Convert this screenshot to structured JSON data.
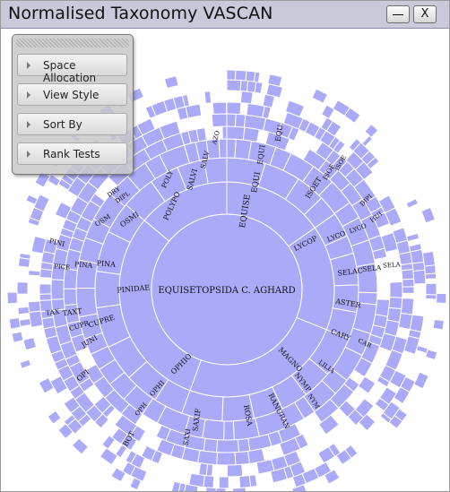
{
  "window": {
    "title": "Normalised Taxonomy VASCAN",
    "close_label": "X"
  },
  "menu": {
    "items": [
      {
        "label": "Space Allocation"
      },
      {
        "label": "View Style"
      },
      {
        "label": "Sort By"
      },
      {
        "label": "Rank Tests"
      }
    ]
  },
  "sunburst": {
    "colors": {
      "fill": "#aaaaf8",
      "stroke": "#ffffff",
      "text": "#111111"
    },
    "center_label": "EQUISETOPSIDA C. AGHARD",
    "labels": [
      {
        "text": "EQUISE",
        "name": "label-equise"
      },
      {
        "text": "EQUI",
        "name": "label-equi"
      },
      {
        "text": "EQUI",
        "name": "label-equi-2"
      },
      {
        "text": "EQU",
        "name": "label-equ"
      },
      {
        "text": "ISOET",
        "name": "label-isoet"
      },
      {
        "text": "ISOE",
        "name": "label-isoe"
      },
      {
        "text": "ISOE",
        "name": "label-isoe-2"
      },
      {
        "text": "DIPI",
        "name": "label-dipi"
      },
      {
        "text": "HUI",
        "name": "label-hui"
      },
      {
        "text": "LYCOP",
        "name": "label-lycop"
      },
      {
        "text": "LYCO",
        "name": "label-lyco"
      },
      {
        "text": "LYCO",
        "name": "label-lyco-2"
      },
      {
        "text": "SELAC",
        "name": "label-selac"
      },
      {
        "text": "SELA",
        "name": "label-sela"
      },
      {
        "text": "SELA",
        "name": "label-sela-2"
      },
      {
        "text": "ASTER",
        "name": "label-aster"
      },
      {
        "text": "CARY",
        "name": "label-cary"
      },
      {
        "text": "CAR",
        "name": "label-car"
      },
      {
        "text": "LILIA",
        "name": "label-lilia"
      },
      {
        "text": "MAGNO",
        "name": "label-magno"
      },
      {
        "text": "NYMP",
        "name": "label-nymp"
      },
      {
        "text": "NYM",
        "name": "label-nym"
      },
      {
        "text": "RANU",
        "name": "label-ranu"
      },
      {
        "text": "RAN",
        "name": "label-ran"
      },
      {
        "text": "ROSA",
        "name": "label-rosa"
      },
      {
        "text": "SAXIF",
        "name": "label-saxif"
      },
      {
        "text": "SAXI",
        "name": "label-saxi"
      },
      {
        "text": "BOT",
        "name": "label-bot"
      },
      {
        "text": "OPHIO",
        "name": "label-ophio"
      },
      {
        "text": "OPHI",
        "name": "label-ophi"
      },
      {
        "text": "OPH",
        "name": "label-oph"
      },
      {
        "text": "OPI",
        "name": "label-opi"
      },
      {
        "text": "JUNI",
        "name": "label-juni"
      },
      {
        "text": "CUPRE",
        "name": "label-cupre"
      },
      {
        "text": "CUPR",
        "name": "label-cupr"
      },
      {
        "text": "TAXT",
        "name": "label-taxt"
      },
      {
        "text": "TAX",
        "name": "label-tax"
      },
      {
        "text": "PINIDAE",
        "name": "label-pinidae"
      },
      {
        "text": "PINA",
        "name": "label-pina"
      },
      {
        "text": "PINA",
        "name": "label-pina-2"
      },
      {
        "text": "PICE",
        "name": "label-pice"
      },
      {
        "text": "PINI",
        "name": "label-pini"
      },
      {
        "text": "OSMI",
        "name": "label-osmi"
      },
      {
        "text": "OSM",
        "name": "label-osm"
      },
      {
        "text": "DIPL",
        "name": "label-dipl"
      },
      {
        "text": "DRY",
        "name": "label-dry"
      },
      {
        "text": "POLYPO",
        "name": "label-polypo"
      },
      {
        "text": "POLY",
        "name": "label-poly"
      },
      {
        "text": "SALVI",
        "name": "label-salvi"
      },
      {
        "text": "SALV",
        "name": "label-salv"
      },
      {
        "text": "AZO",
        "name": "label-azo"
      }
    ]
  }
}
